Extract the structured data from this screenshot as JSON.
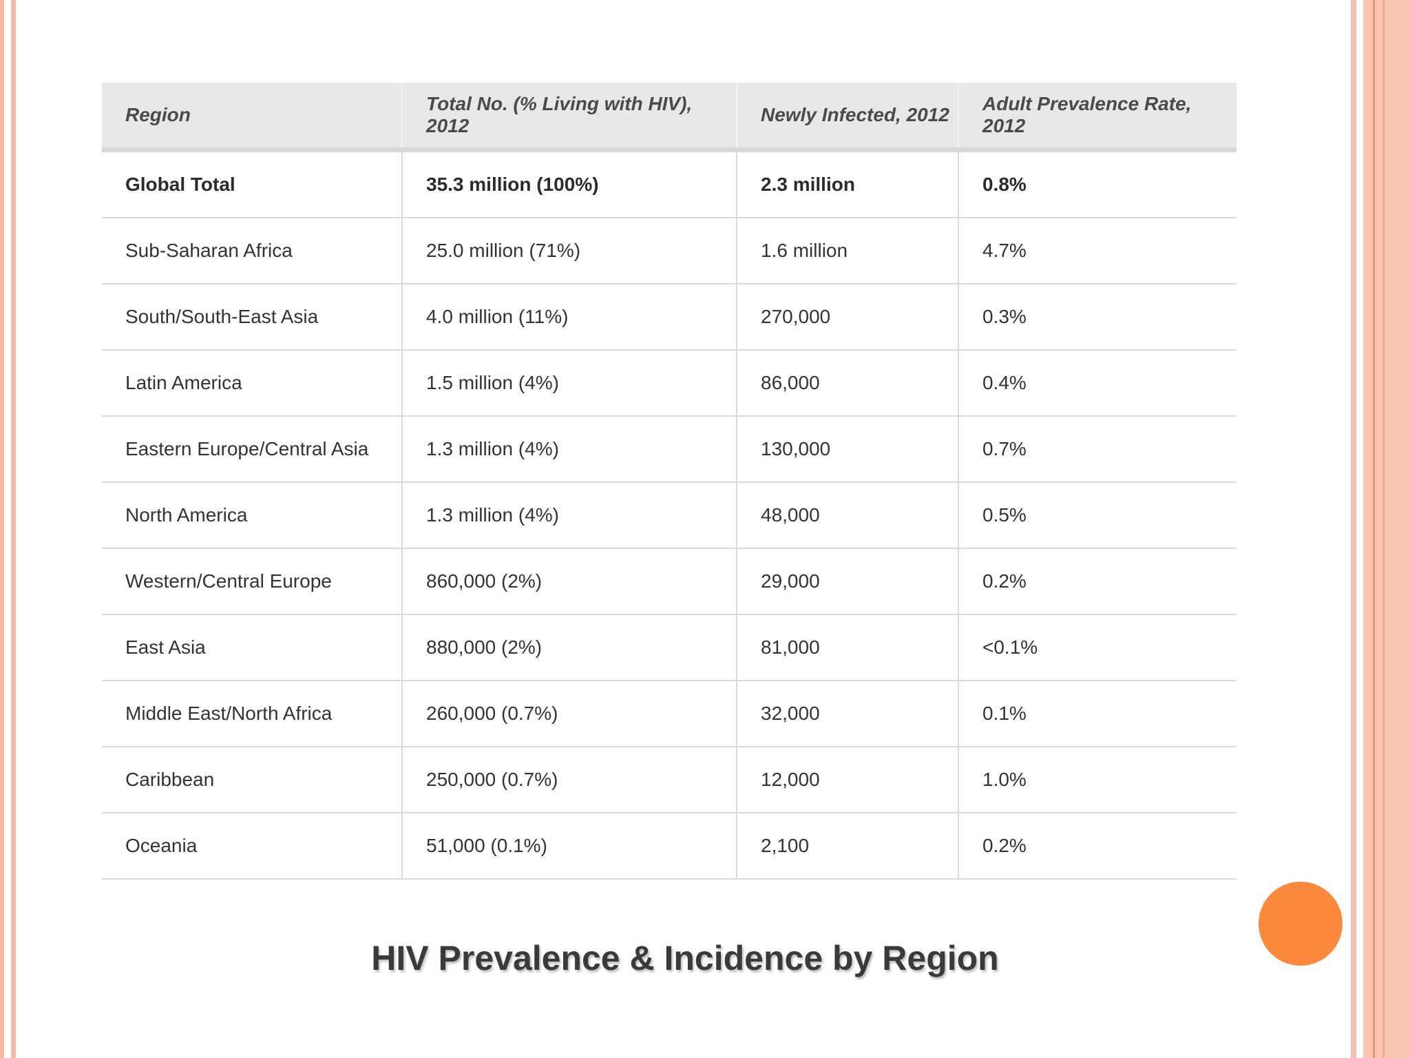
{
  "slide": {
    "title": "HIV Prevalence & Incidence by Region",
    "accent_color": "#fd8a3c",
    "border_color": "#f4b9a3"
  },
  "table": {
    "headers": [
      "Region",
      "Total No. (% Living with HIV), 2012",
      "Newly Infected, 2012",
      "Adult Prevalence Rate, 2012"
    ],
    "rows": [
      [
        "Global Total",
        "35.3 million (100%)",
        "2.3 million",
        "0.8%"
      ],
      [
        "Sub-Saharan Africa",
        "25.0 million (71%)",
        "1.6 million",
        "4.7%"
      ],
      [
        "South/South-East Asia",
        "4.0 million (11%)",
        "270,000",
        "0.3%"
      ],
      [
        "Latin America",
        "1.5 million (4%)",
        "86,000",
        "0.4%"
      ],
      [
        "Eastern Europe/Central Asia",
        "1.3 million (4%)",
        "130,000",
        "0.7%"
      ],
      [
        "North America",
        "1.3 million (4%)",
        "48,000",
        "0.5%"
      ],
      [
        "Western/Central Europe",
        "860,000 (2%)",
        "29,000",
        "0.2%"
      ],
      [
        "East Asia",
        "880,000 (2%)",
        "81,000",
        "<0.1%"
      ],
      [
        "Middle East/North Africa",
        "260,000 (0.7%)",
        "32,000",
        "0.1%"
      ],
      [
        "Caribbean",
        "250,000 (0.7%)",
        "12,000",
        "1.0%"
      ],
      [
        "Oceania",
        "51,000 (0.1%)",
        "2,100",
        "0.2%"
      ]
    ]
  }
}
